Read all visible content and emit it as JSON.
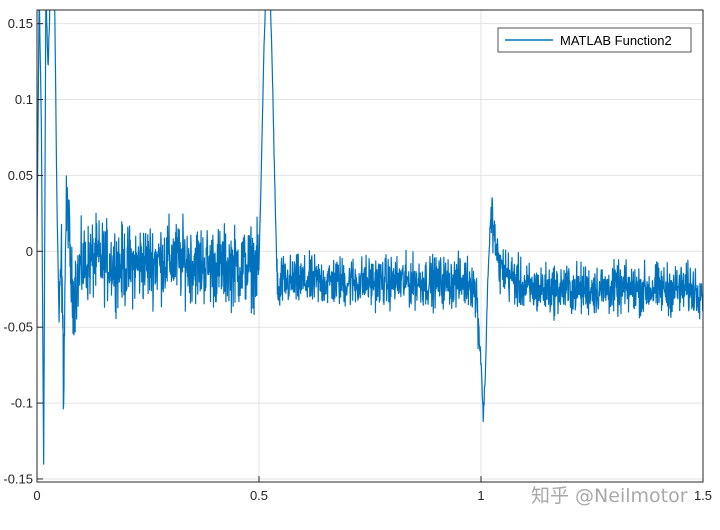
{
  "chart_data": {
    "type": "line",
    "title": "",
    "xlabel": "",
    "ylabel": "",
    "xlim": [
      0,
      1.5
    ],
    "ylim": [
      -0.152,
      0.159
    ],
    "grid": true,
    "legend_position": "top-right",
    "x_ticks": [
      {
        "value": 0,
        "label": "0"
      },
      {
        "value": 0.5,
        "label": "0.5"
      },
      {
        "value": 1,
        "label": "1"
      },
      {
        "value": 1.5,
        "label": "1.5"
      }
    ],
    "y_ticks": [
      {
        "value": 0.15,
        "label": "0.15"
      },
      {
        "value": 0.1,
        "label": "0.1"
      },
      {
        "value": 0.05,
        "label": "0.05"
      },
      {
        "value": 0,
        "label": "0"
      },
      {
        "value": -0.05,
        "label": "-0.05"
      },
      {
        "value": -0.1,
        "label": "-0.1"
      },
      {
        "value": -0.15,
        "label": "-0.15"
      }
    ],
    "series": [
      {
        "name": "MATLAB Function2",
        "color": "#0072BD",
        "description_points": [
          [
            0.0,
            0.005
          ],
          [
            0.005,
            0.17
          ],
          [
            0.01,
            0.08
          ],
          [
            0.015,
            -0.14
          ],
          [
            0.02,
            0.17
          ],
          [
            0.025,
            0.12
          ],
          [
            0.03,
            0.17
          ],
          [
            0.035,
            0.17
          ],
          [
            0.04,
            0.16
          ],
          [
            0.045,
            0.03
          ],
          [
            0.05,
            -0.05
          ],
          [
            0.055,
            0.0
          ],
          [
            0.06,
            -0.09
          ],
          [
            0.065,
            0.02
          ],
          [
            0.07,
            0.03
          ],
          [
            0.075,
            -0.01
          ],
          [
            0.08,
            -0.03
          ],
          [
            0.09,
            -0.02
          ],
          [
            0.1,
            -0.01
          ],
          [
            0.13,
            -0.005
          ],
          [
            0.2,
            -0.01
          ],
          [
            0.3,
            -0.005
          ],
          [
            0.4,
            -0.01
          ],
          [
            0.48,
            -0.01
          ],
          [
            0.5,
            -0.01
          ],
          [
            0.505,
            0.05
          ],
          [
            0.51,
            0.12
          ],
          [
            0.515,
            0.17
          ],
          [
            0.52,
            0.17
          ],
          [
            0.525,
            0.17
          ],
          [
            0.53,
            0.12
          ],
          [
            0.535,
            0.05
          ],
          [
            0.54,
            -0.01
          ],
          [
            0.545,
            -0.035
          ],
          [
            0.55,
            -0.02
          ],
          [
            0.6,
            -0.02
          ],
          [
            0.7,
            -0.02
          ],
          [
            0.8,
            -0.02
          ],
          [
            0.9,
            -0.02
          ],
          [
            0.98,
            -0.02
          ],
          [
            0.99,
            -0.03
          ],
          [
            1.0,
            -0.07
          ],
          [
            1.005,
            -0.11
          ],
          [
            1.01,
            -0.08
          ],
          [
            1.015,
            -0.02
          ],
          [
            1.02,
            0.01
          ],
          [
            1.025,
            0.025
          ],
          [
            1.03,
            0.01
          ],
          [
            1.04,
            -0.01
          ],
          [
            1.1,
            -0.025
          ],
          [
            1.2,
            -0.025
          ],
          [
            1.3,
            -0.025
          ],
          [
            1.4,
            -0.025
          ],
          [
            1.5,
            -0.025
          ]
        ],
        "noise_amplitude": [
          {
            "x_from": 0.05,
            "x_to": 0.5,
            "amplitude": 0.028
          },
          {
            "x_from": 0.54,
            "x_to": 1.0,
            "amplitude": 0.018
          },
          {
            "x_from": 1.02,
            "x_to": 1.5,
            "amplitude": 0.018
          }
        ]
      }
    ]
  },
  "watermark": "知乎 @Neilmotor"
}
